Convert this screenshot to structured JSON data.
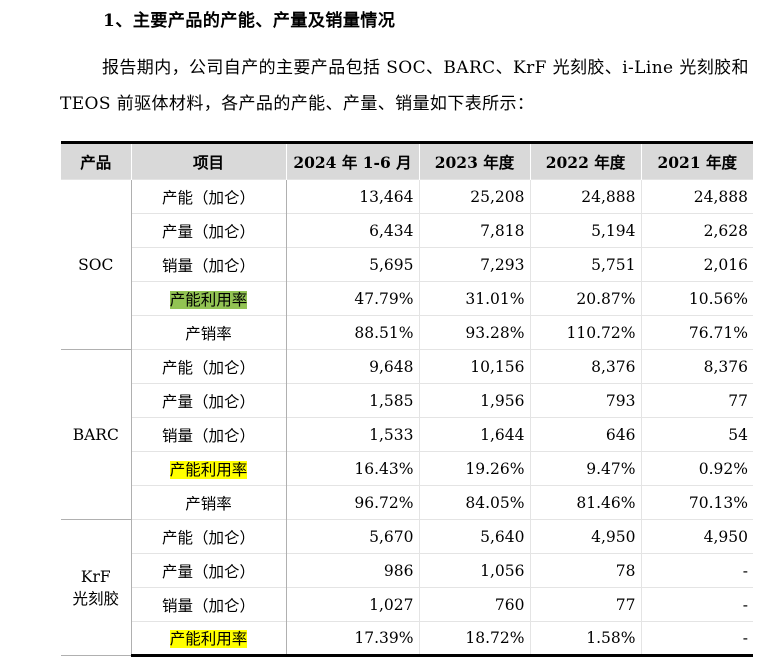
{
  "heading": "1、主要产品的产能、产量及销量情况",
  "paragraph": "报告期内，公司自产的主要产品包括 SOC、BARC、KrF 光刻胶、i-Line 光刻胶和 TEOS 前驱体材料，各产品的产能、产量、销量如下表所示：",
  "table": {
    "headers": [
      "产品",
      "项目",
      "2024 年 1-6 月",
      "2023 年度",
      "2022 年度",
      "2021 年度"
    ],
    "groups": [
      {
        "product": "SOC",
        "rows": [
          {
            "item": "产能（加仑）",
            "values": [
              "13,464",
              "25,208",
              "24,888",
              "24,888"
            ]
          },
          {
            "item": "产量（加仑）",
            "values": [
              "6,434",
              "7,818",
              "5,194",
              "2,628"
            ]
          },
          {
            "item": "销量（加仑）",
            "values": [
              "5,695",
              "7,293",
              "5,751",
              "2,016"
            ]
          },
          {
            "item": "产能利用率",
            "values": [
              "47.79%",
              "31.01%",
              "20.87%",
              "10.56%"
            ]
          },
          {
            "item": "产销率",
            "values": [
              "88.51%",
              "93.28%",
              "110.72%",
              "76.71%"
            ]
          }
        ]
      },
      {
        "product": "BARC",
        "rows": [
          {
            "item": "产能（加仑）",
            "values": [
              "9,648",
              "10,156",
              "8,376",
              "8,376"
            ]
          },
          {
            "item": "产量（加仑）",
            "values": [
              "1,585",
              "1,956",
              "793",
              "77"
            ]
          },
          {
            "item": "销量（加仑）",
            "values": [
              "1,533",
              "1,644",
              "646",
              "54"
            ]
          },
          {
            "item": "产能利用率",
            "values": [
              "16.43%",
              "19.26%",
              "9.47%",
              "0.92%"
            ]
          },
          {
            "item": "产销率",
            "values": [
              "96.72%",
              "84.05%",
              "81.46%",
              "70.13%"
            ]
          }
        ]
      },
      {
        "product_line1": "KrF",
        "product_line2": "光刻胶",
        "rows": [
          {
            "item": "产能（加仑）",
            "values": [
              "5,670",
              "5,640",
              "4,950",
              "4,950"
            ]
          },
          {
            "item": "产量（加仑）",
            "values": [
              "986",
              "1,056",
              "78",
              "-"
            ]
          },
          {
            "item": "销量（加仑）",
            "values": [
              "1,027",
              "760",
              "77",
              "-"
            ]
          },
          {
            "item": "产能利用率",
            "values": [
              "17.39%",
              "18.72%",
              "1.58%",
              "-"
            ]
          }
        ]
      }
    ]
  },
  "colors": {
    "header_bg": "#d9d9d9",
    "highlight_green": "#92c353",
    "highlight_yellow": "#ffff00"
  }
}
